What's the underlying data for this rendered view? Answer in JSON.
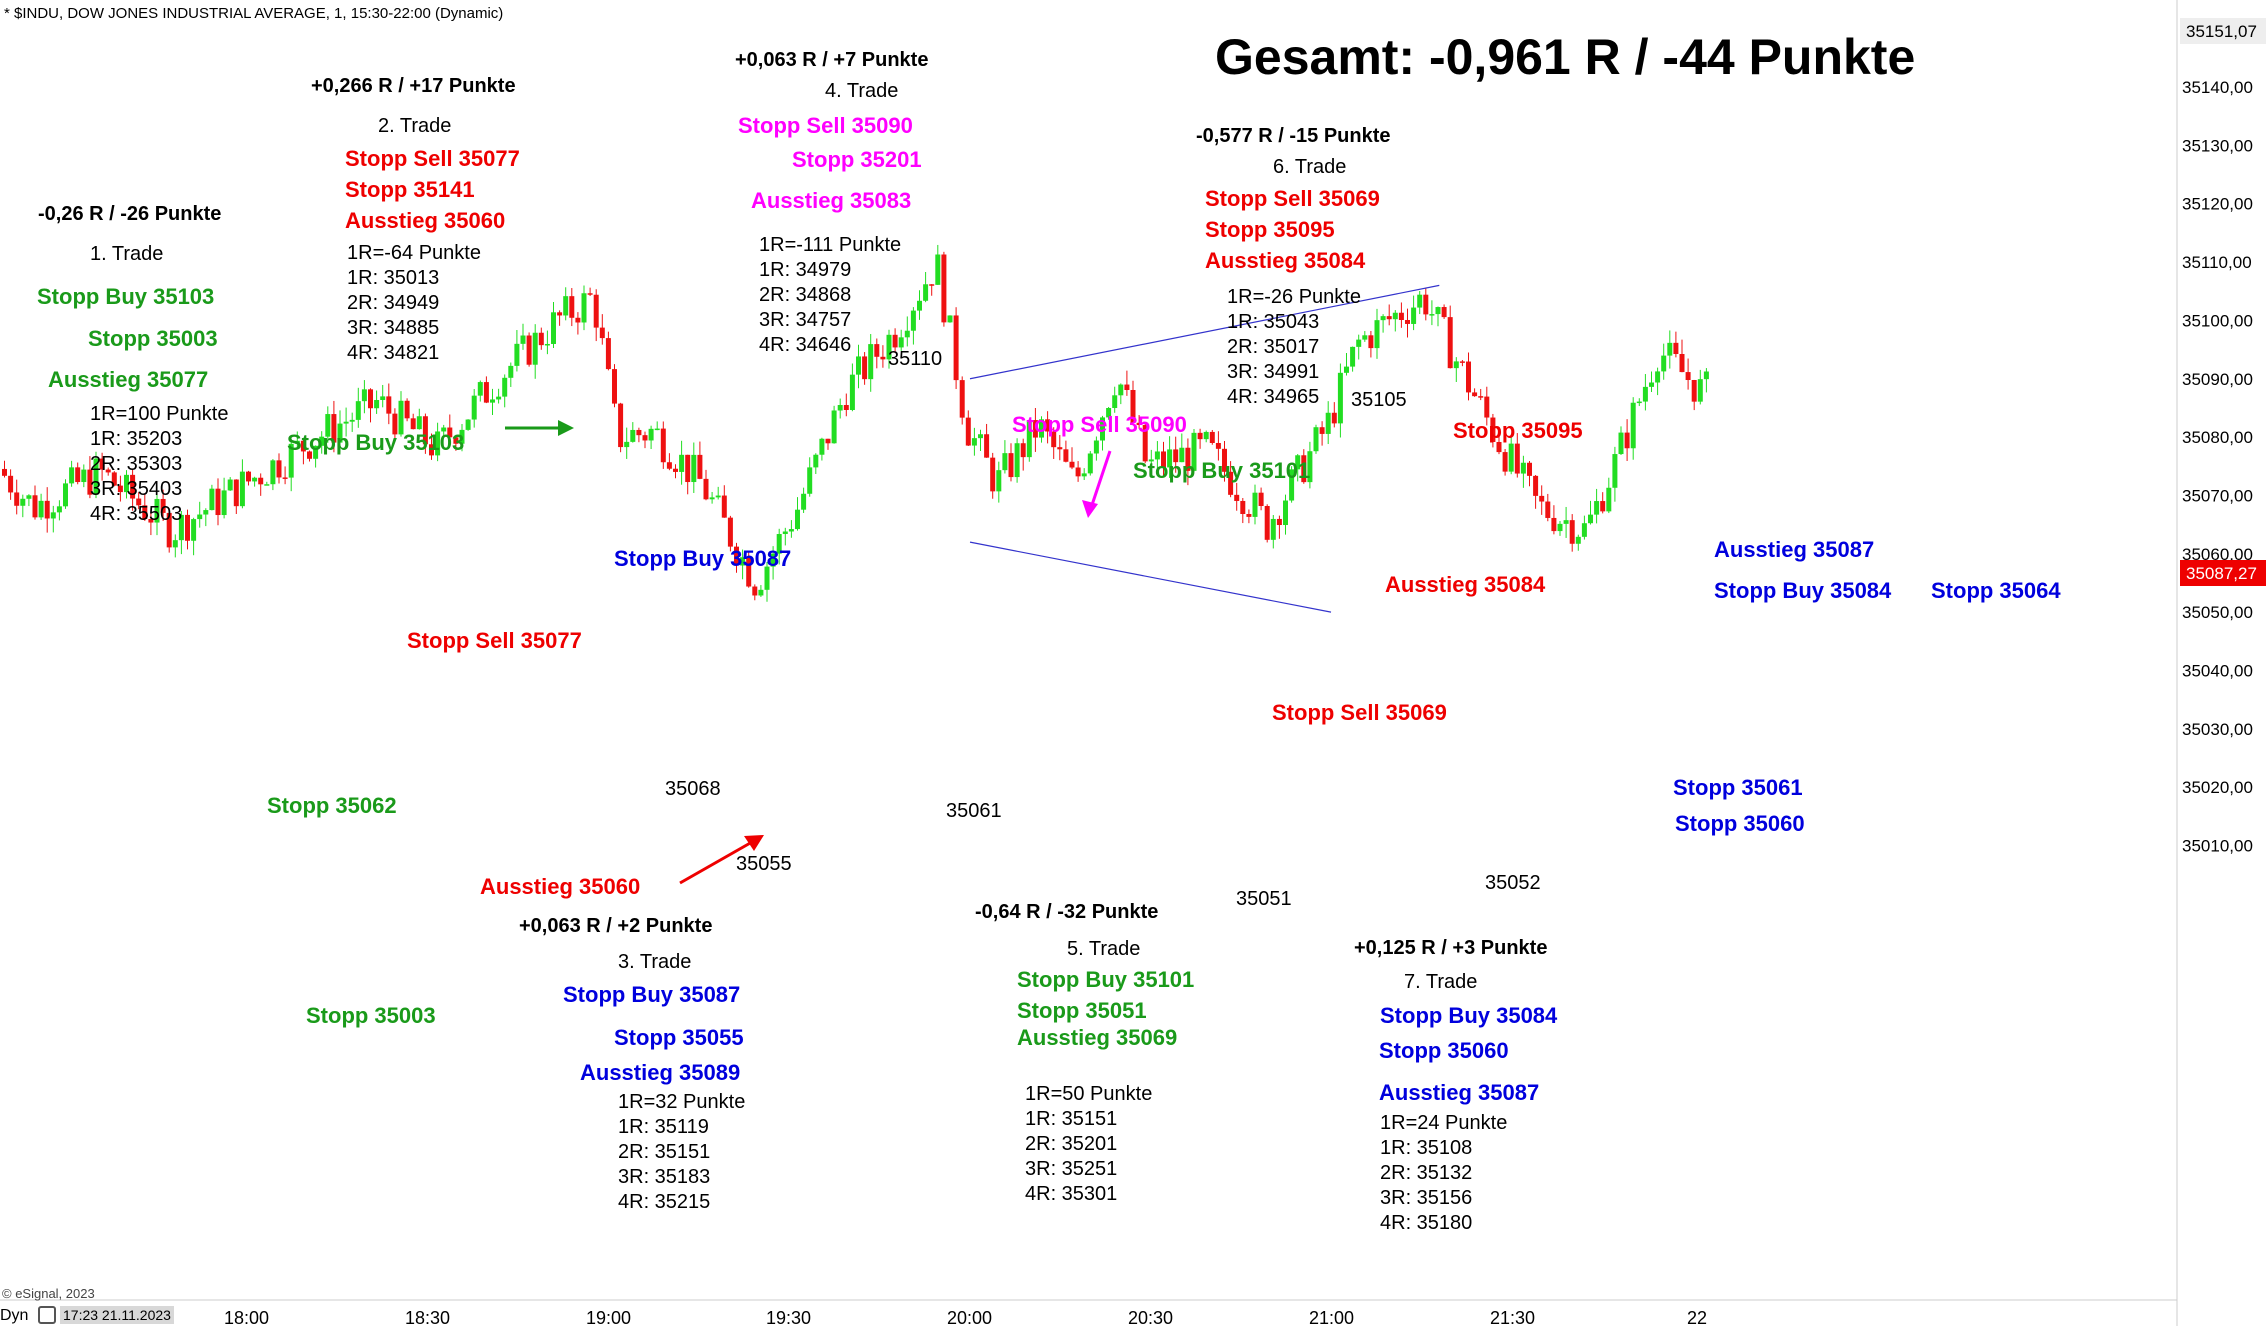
{
  "header": {
    "title": "* $INDU, DOW JONES INDUSTRIAL AVERAGE, 1, 15:30-22:00 (Dynamic)"
  },
  "total": {
    "text": "Gesamt: -0,961 R / -44 Punkte"
  },
  "price_axis": {
    "top_label": "35151,07",
    "last_price": "35087,27",
    "last_price_color": "#ee0000"
  },
  "footer": {
    "copyright": "© eSignal, 2023",
    "mode": "Dyn",
    "clock": "17:23 21.11.2023"
  },
  "trades": [
    {
      "result": "-0,26 R / -26 Punkte",
      "name": "1. Trade",
      "lines": [
        "Stopp Buy 35103",
        "Stopp 35003",
        "Ausstieg 35077"
      ],
      "r_list": [
        "1R=100 Punkte",
        "1R: 35203",
        "2R: 35303",
        "3R: 35403",
        "4R: 35503"
      ]
    },
    {
      "result": "+0,266 R / +17 Punkte",
      "name": "2. Trade",
      "lines": [
        "Stopp Sell 35077",
        "Stopp 35141",
        "Ausstieg 35060"
      ],
      "r_list": [
        "1R=-64 Punkte",
        "1R: 35013",
        "2R: 34949",
        "3R: 34885",
        "4R: 34821"
      ]
    },
    {
      "result": "+0,063 R / +2 Punkte",
      "name": "3. Trade",
      "lines": [
        "Stopp Buy 35087",
        "Stopp 35055",
        "Ausstieg 35089"
      ],
      "r_list": [
        "1R=32 Punkte",
        "1R: 35119",
        "2R: 35151",
        "3R: 35183",
        "4R: 35215"
      ]
    },
    {
      "result": "+0,063 R / +7 Punkte",
      "name": "4. Trade",
      "lines": [
        "Stopp Sell 35090",
        "Stopp 35201",
        "Ausstieg 35083"
      ],
      "r_list": [
        "1R=-111 Punkte",
        "1R: 34979",
        "2R: 34868",
        "3R: 34757",
        "4R: 34646"
      ]
    },
    {
      "result": "-0,64 R / -32 Punkte",
      "name": "5. Trade",
      "lines": [
        "Stopp Buy 35101",
        "Stopp 35051",
        "Ausstieg 35069"
      ],
      "r_list": [
        "1R=50 Punkte",
        "1R: 35151",
        "2R: 35201",
        "3R: 35251",
        "4R: 35301"
      ]
    },
    {
      "result": "-0,577 R / -15 Punkte",
      "name": "6. Trade",
      "lines": [
        "Stopp Sell 35069",
        "Stopp 35095",
        "Ausstieg 35084"
      ],
      "r_list": [
        "1R=-26 Punkte",
        "1R: 35043",
        "2R: 35017",
        "3R: 34991",
        "4R: 34965"
      ]
    },
    {
      "result": "+0,125 R / +3 Punkte",
      "name": "7. Trade",
      "lines": [
        "Stopp Buy 35084",
        "Stopp 35060",
        "Ausstieg 35087"
      ],
      "r_list": [
        "1R=24 Punkte",
        "1R: 35108",
        "2R: 35132",
        "3R: 35156",
        "4R: 35180"
      ]
    }
  ],
  "chart_labels": {
    "stopp_buy_35103": "Stopp Buy 35103",
    "stopp_35062": "Stopp 35062",
    "stopp_35003": "Stopp 35003",
    "stopp_sell_35077": "Stopp Sell 35077",
    "ausstieg_35060": "Ausstieg 35060",
    "stopp_buy_35087": "Stopp Buy 35087",
    "stopp_sell_35090": "Stopp Sell 35090",
    "stopp_buy_35101": "Stopp Buy 35101",
    "stopp_35095": "Stopp 35095",
    "ausstieg_35084": "Ausstieg 35084",
    "stopp_sell_35069": "Stopp Sell 35069",
    "ausstieg_35087": "Ausstieg 35087",
    "stopp_buy_35084": "Stopp Buy 35084",
    "stopp_35064": "Stopp 35064",
    "stopp_35061": "Stopp 35061",
    "stopp_35060": "Stopp 35060"
  },
  "price_marks": {
    "p35110": "35110",
    "p35105": "35105",
    "p35068": "35068",
    "p35055": "35055",
    "p35061": "35061",
    "p35051": "35051",
    "p35052": "35052"
  },
  "colors": {
    "green": "#1a9a1a",
    "red": "#ee0000",
    "magenta": "#ff00ff",
    "blue": "#0000dd",
    "bull_candle": "#22dd22",
    "bear_candle": "#ee1111",
    "trendline": "#3333cc"
  },
  "chart_data": {
    "type": "candlestick",
    "x_ticks": [
      "18:00",
      "18:30",
      "19:00",
      "19:30",
      "20:00",
      "20:30",
      "21:00",
      "21:30",
      "22"
    ],
    "y_ticks": [
      "35140,00",
      "35130,00",
      "35120,00",
      "35110,00",
      "35100,00",
      "35090,00",
      "35080,00",
      "35070,00",
      "35060,00",
      "35050,00",
      "35040,00",
      "35030,00",
      "35020,00",
      "35010,00"
    ],
    "ylim": [
      35005,
      35155
    ],
    "path": [
      [
        "15:55",
        35065
      ],
      [
        "16:05",
        35058
      ],
      [
        "16:13",
        35072
      ],
      [
        "16:22",
        35062
      ],
      [
        "16:30",
        35044
      ],
      [
        "16:40",
        35052
      ],
      [
        "16:52",
        35072
      ],
      [
        "17:05",
        35066
      ],
      [
        "17:16",
        35078
      ],
      [
        "17:25",
        35068
      ],
      [
        "17:36",
        35074
      ],
      [
        "17:48",
        35064
      ],
      [
        "18:00",
        35072
      ],
      [
        "18:12",
        35080
      ],
      [
        "18:22",
        35086
      ],
      [
        "18:32",
        35078
      ],
      [
        "18:42",
        35090
      ],
      [
        "18:52",
        35100
      ],
      [
        "18:58",
        35104
      ],
      [
        "19:02",
        35080
      ],
      [
        "19:08",
        35081
      ],
      [
        "19:16",
        35072
      ],
      [
        "19:25",
        35055
      ],
      [
        "19:32",
        35068
      ],
      [
        "19:40",
        35088
      ],
      [
        "19:48",
        35098
      ],
      [
        "19:55",
        35110
      ],
      [
        "20:00",
        35082
      ],
      [
        "20:05",
        35072
      ],
      [
        "20:12",
        35082
      ],
      [
        "20:18",
        35072
      ],
      [
        "20:25",
        35091
      ],
      [
        "20:30",
        35075
      ],
      [
        "20:40",
        35078
      ],
      [
        "20:50",
        35065
      ],
      [
        "21:00",
        35082
      ],
      [
        "21:05",
        35096
      ],
      [
        "21:10",
        35100
      ],
      [
        "21:16",
        35104
      ],
      [
        "21:22",
        35092
      ],
      [
        "21:28",
        35080
      ],
      [
        "21:35",
        35068
      ],
      [
        "21:43",
        35064
      ],
      [
        "21:48",
        35076
      ],
      [
        "21:55",
        35095
      ],
      [
        "22:02",
        35088
      ]
    ],
    "trendlines": [
      {
        "from": [
          "20:00",
          35090
        ],
        "to": [
          "21:18",
          35106
        ]
      },
      {
        "from": [
          "20:00",
          35062
        ],
        "to": [
          "21:00",
          35050
        ]
      }
    ]
  }
}
